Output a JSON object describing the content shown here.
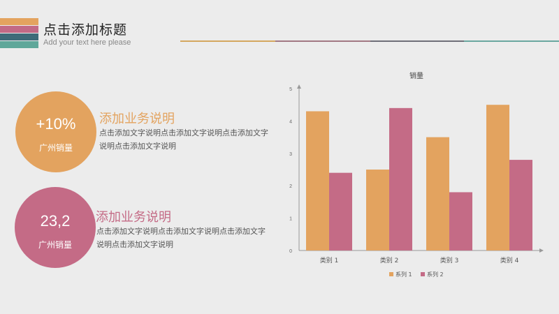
{
  "header": {
    "title": "点击添加标题",
    "subtitle": "Add your text here please",
    "stripe_colors": [
      "#e3a35f",
      "#c26a86",
      "#3e6b79",
      "#5fa79a"
    ],
    "rule_colors": [
      "#d4a75f",
      "#a27883",
      "#6e6e78",
      "#6aa79f"
    ]
  },
  "stats": [
    {
      "value": "+10%",
      "label": "广州销量",
      "color": "#e3a35f",
      "title": "添加业务说明",
      "desc": "点击添加文字说明点击添加文字说明点击添加文字说明点击添加文字说明"
    },
    {
      "value": "23,2",
      "label": "广州销量",
      "color": "#c46b86",
      "title": "添加业务说明",
      "desc": "点击添加文字说明点击添加文字说明点击添加文字说明点击添加文字说明"
    }
  ],
  "chart_data": {
    "type": "bar",
    "title": "销量",
    "categories": [
      "类别 1",
      "类别 2",
      "类别 3",
      "类别 4"
    ],
    "series": [
      {
        "name": "系列 1",
        "values": [
          4.3,
          2.5,
          3.5,
          4.5
        ],
        "color": "#e3a35f"
      },
      {
        "name": "系列 2",
        "values": [
          2.4,
          4.4,
          1.8,
          2.8
        ],
        "color": "#c46b86"
      }
    ],
    "ylim": [
      0,
      5
    ],
    "yticks": [
      "0",
      "1",
      "2",
      "3",
      "4",
      "5"
    ],
    "grid": false,
    "legend": "bottom"
  }
}
